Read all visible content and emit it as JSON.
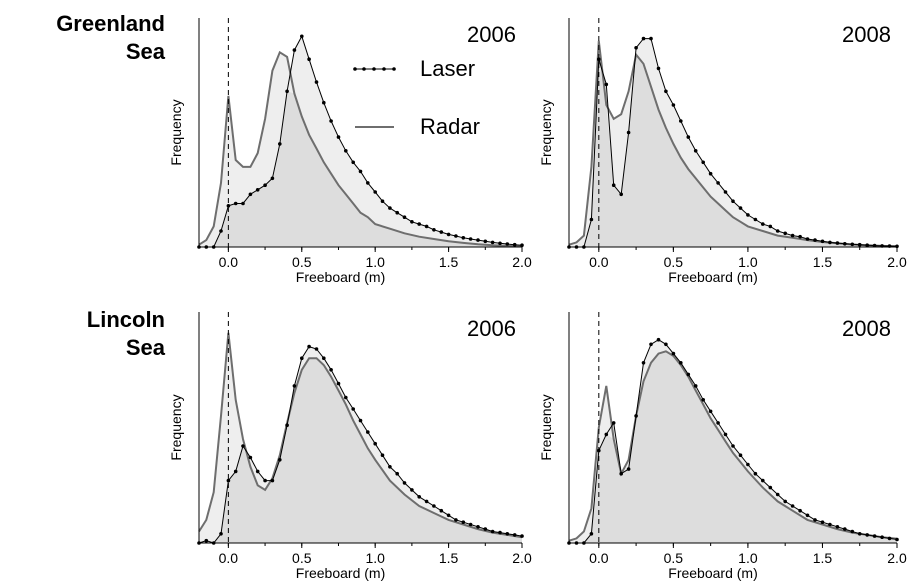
{
  "row_labels": [
    {
      "line1": "Greenland",
      "line2": "Sea"
    },
    {
      "line1": "Lincoln",
      "line2": "Sea"
    }
  ],
  "legend": {
    "laser": "Laser",
    "radar": "Radar"
  },
  "colors": {
    "radar_fill": "#eeeeee",
    "laser_fill": "#dddddd",
    "radar_line": "#6e6e6e",
    "laser_line": "#000000"
  },
  "chart_data": [
    {
      "type": "area",
      "region": "Greenland Sea",
      "year": "2006",
      "xlabel": "Freeboard (m)",
      "ylabel": "Frequency",
      "xticks": [
        "0.0",
        "0.5",
        "1.0",
        "1.5",
        "2.0"
      ],
      "xlim": [
        -0.2,
        2.0
      ],
      "ylim": [
        0,
        1
      ],
      "dashed_line_x": 0.0,
      "legend_placement": "top-right",
      "series": [
        {
          "name": "Radar",
          "x": [
            -0.2,
            -0.15,
            -0.1,
            -0.05,
            0.0,
            0.05,
            0.1,
            0.15,
            0.2,
            0.25,
            0.3,
            0.35,
            0.4,
            0.45,
            0.5,
            0.55,
            0.6,
            0.65,
            0.7,
            0.75,
            0.8,
            0.85,
            0.9,
            0.95,
            1.0,
            1.1,
            1.2,
            1.3,
            1.4,
            1.5,
            1.6,
            1.7,
            1.8,
            1.9,
            2.0
          ],
          "values": [
            0.01,
            0.03,
            0.09,
            0.28,
            0.66,
            0.38,
            0.35,
            0.35,
            0.41,
            0.56,
            0.77,
            0.85,
            0.83,
            0.67,
            0.57,
            0.49,
            0.43,
            0.37,
            0.32,
            0.27,
            0.23,
            0.19,
            0.15,
            0.13,
            0.1,
            0.08,
            0.06,
            0.045,
            0.035,
            0.025,
            0.018,
            0.012,
            0.008,
            0.005,
            0.003
          ]
        },
        {
          "name": "Laser",
          "x": [
            -0.2,
            -0.15,
            -0.1,
            -0.05,
            0.0,
            0.05,
            0.1,
            0.15,
            0.2,
            0.25,
            0.3,
            0.35,
            0.4,
            0.45,
            0.5,
            0.55,
            0.6,
            0.65,
            0.7,
            0.75,
            0.8,
            0.85,
            0.9,
            0.95,
            1.0,
            1.05,
            1.1,
            1.15,
            1.2,
            1.25,
            1.3,
            1.35,
            1.4,
            1.45,
            1.5,
            1.55,
            1.6,
            1.65,
            1.7,
            1.75,
            1.8,
            1.85,
            1.9,
            1.95,
            2.0
          ],
          "values": [
            0.0,
            0.0,
            0.0,
            0.07,
            0.18,
            0.19,
            0.19,
            0.23,
            0.25,
            0.27,
            0.3,
            0.45,
            0.68,
            0.86,
            0.92,
            0.82,
            0.72,
            0.63,
            0.55,
            0.48,
            0.42,
            0.37,
            0.33,
            0.28,
            0.24,
            0.2,
            0.17,
            0.15,
            0.13,
            0.11,
            0.1,
            0.09,
            0.075,
            0.065,
            0.055,
            0.048,
            0.04,
            0.035,
            0.03,
            0.025,
            0.02,
            0.016,
            0.013,
            0.01,
            0.008
          ]
        }
      ]
    },
    {
      "type": "area",
      "region": "Greenland Sea",
      "year": "2008",
      "xlabel": "Freeboard (m)",
      "ylabel": "Frequency",
      "xticks": [
        "0.0",
        "0.5",
        "1.0",
        "1.5",
        "2.0"
      ],
      "xlim": [
        -0.2,
        2.0
      ],
      "ylim": [
        0,
        1
      ],
      "dashed_line_x": 0.0,
      "series": [
        {
          "name": "Radar",
          "x": [
            -0.2,
            -0.15,
            -0.1,
            -0.05,
            0.0,
            0.05,
            0.1,
            0.15,
            0.2,
            0.25,
            0.3,
            0.35,
            0.4,
            0.45,
            0.5,
            0.55,
            0.6,
            0.65,
            0.7,
            0.75,
            0.8,
            0.85,
            0.9,
            0.95,
            1.0,
            1.1,
            1.2,
            1.3,
            1.4,
            1.5,
            1.6,
            1.7,
            1.8,
            1.9,
            2.0
          ],
          "values": [
            0.01,
            0.02,
            0.05,
            0.35,
            0.9,
            0.62,
            0.56,
            0.58,
            0.68,
            0.84,
            0.8,
            0.7,
            0.6,
            0.52,
            0.45,
            0.39,
            0.34,
            0.3,
            0.26,
            0.22,
            0.19,
            0.16,
            0.13,
            0.11,
            0.09,
            0.07,
            0.05,
            0.04,
            0.03,
            0.022,
            0.016,
            0.011,
            0.008,
            0.005,
            0.003
          ]
        },
        {
          "name": "Laser",
          "x": [
            -0.2,
            -0.15,
            -0.1,
            -0.05,
            0.0,
            0.05,
            0.1,
            0.15,
            0.2,
            0.25,
            0.3,
            0.35,
            0.4,
            0.45,
            0.5,
            0.55,
            0.6,
            0.65,
            0.7,
            0.75,
            0.8,
            0.85,
            0.9,
            0.95,
            1.0,
            1.05,
            1.1,
            1.15,
            1.2,
            1.25,
            1.3,
            1.35,
            1.4,
            1.45,
            1.5,
            1.55,
            1.6,
            1.65,
            1.7,
            1.75,
            1.8,
            1.85,
            1.9,
            1.95,
            2.0
          ],
          "values": [
            0.0,
            0.0,
            0.0,
            0.12,
            0.82,
            0.71,
            0.27,
            0.23,
            0.5,
            0.87,
            0.91,
            0.91,
            0.78,
            0.68,
            0.62,
            0.55,
            0.48,
            0.42,
            0.37,
            0.32,
            0.28,
            0.24,
            0.2,
            0.17,
            0.14,
            0.12,
            0.1,
            0.09,
            0.07,
            0.06,
            0.05,
            0.045,
            0.035,
            0.03,
            0.025,
            0.02,
            0.017,
            0.014,
            0.012,
            0.01,
            0.008,
            0.006,
            0.005,
            0.004,
            0.003
          ]
        }
      ]
    },
    {
      "type": "area",
      "region": "Lincoln Sea",
      "year": "2006",
      "xlabel": "Freeboard (m)",
      "ylabel": "Frequency",
      "xticks": [
        "0.0",
        "0.5",
        "1.0",
        "1.5",
        "2.0"
      ],
      "xlim": [
        -0.2,
        2.0
      ],
      "ylim": [
        0,
        1
      ],
      "dashed_line_x": 0.0,
      "series": [
        {
          "name": "Radar",
          "x": [
            -0.2,
            -0.15,
            -0.1,
            -0.05,
            0.0,
            0.05,
            0.1,
            0.15,
            0.2,
            0.25,
            0.3,
            0.35,
            0.4,
            0.45,
            0.5,
            0.55,
            0.6,
            0.65,
            0.7,
            0.75,
            0.8,
            0.85,
            0.9,
            0.95,
            1.0,
            1.1,
            1.2,
            1.3,
            1.4,
            1.5,
            1.6,
            1.7,
            1.8,
            1.9,
            2.0
          ],
          "values": [
            0.05,
            0.1,
            0.22,
            0.55,
            0.91,
            0.62,
            0.45,
            0.33,
            0.25,
            0.23,
            0.28,
            0.38,
            0.52,
            0.65,
            0.75,
            0.8,
            0.8,
            0.77,
            0.72,
            0.66,
            0.6,
            0.53,
            0.47,
            0.41,
            0.36,
            0.27,
            0.21,
            0.16,
            0.13,
            0.1,
            0.08,
            0.06,
            0.045,
            0.035,
            0.025
          ]
        },
        {
          "name": "Laser",
          "x": [
            -0.2,
            -0.15,
            -0.1,
            -0.05,
            0.0,
            0.05,
            0.1,
            0.15,
            0.2,
            0.25,
            0.3,
            0.35,
            0.4,
            0.45,
            0.5,
            0.55,
            0.6,
            0.65,
            0.7,
            0.75,
            0.8,
            0.85,
            0.9,
            0.95,
            1.0,
            1.05,
            1.1,
            1.15,
            1.2,
            1.25,
            1.3,
            1.35,
            1.4,
            1.45,
            1.5,
            1.55,
            1.6,
            1.65,
            1.7,
            1.75,
            1.8,
            1.85,
            1.9,
            1.95,
            2.0
          ],
          "values": [
            0.0,
            0.01,
            0.0,
            0.04,
            0.27,
            0.31,
            0.42,
            0.37,
            0.31,
            0.27,
            0.27,
            0.36,
            0.51,
            0.68,
            0.8,
            0.85,
            0.84,
            0.8,
            0.75,
            0.69,
            0.63,
            0.58,
            0.53,
            0.48,
            0.43,
            0.38,
            0.33,
            0.3,
            0.26,
            0.23,
            0.2,
            0.18,
            0.16,
            0.14,
            0.12,
            0.1,
            0.09,
            0.08,
            0.07,
            0.06,
            0.05,
            0.045,
            0.04,
            0.035,
            0.03
          ]
        }
      ]
    },
    {
      "type": "area",
      "region": "Lincoln Sea",
      "year": "2008",
      "xlabel": "Freeboard (m)",
      "ylabel": "Frequency",
      "xticks": [
        "0.0",
        "0.5",
        "1.0",
        "1.5",
        "2.0"
      ],
      "xlim": [
        -0.2,
        2.0
      ],
      "ylim": [
        0,
        1
      ],
      "dashed_line_x": 0.0,
      "series": [
        {
          "name": "Radar",
          "x": [
            -0.2,
            -0.15,
            -0.1,
            -0.05,
            0.0,
            0.05,
            0.1,
            0.15,
            0.2,
            0.25,
            0.3,
            0.35,
            0.4,
            0.45,
            0.5,
            0.55,
            0.6,
            0.65,
            0.7,
            0.75,
            0.8,
            0.85,
            0.9,
            0.95,
            1.0,
            1.1,
            1.2,
            1.3,
            1.4,
            1.5,
            1.6,
            1.7,
            1.8,
            1.9,
            2.0
          ],
          "values": [
            0.01,
            0.02,
            0.05,
            0.15,
            0.5,
            0.68,
            0.45,
            0.3,
            0.36,
            0.55,
            0.7,
            0.78,
            0.82,
            0.83,
            0.81,
            0.77,
            0.72,
            0.66,
            0.6,
            0.54,
            0.49,
            0.44,
            0.39,
            0.35,
            0.31,
            0.24,
            0.18,
            0.14,
            0.1,
            0.08,
            0.06,
            0.045,
            0.035,
            0.025,
            0.018
          ]
        },
        {
          "name": "Laser",
          "x": [
            -0.2,
            -0.15,
            -0.1,
            -0.05,
            0.0,
            0.05,
            0.1,
            0.15,
            0.2,
            0.25,
            0.3,
            0.35,
            0.4,
            0.45,
            0.5,
            0.55,
            0.6,
            0.65,
            0.7,
            0.75,
            0.8,
            0.85,
            0.9,
            0.95,
            1.0,
            1.05,
            1.1,
            1.15,
            1.2,
            1.25,
            1.3,
            1.35,
            1.4,
            1.45,
            1.5,
            1.55,
            1.6,
            1.65,
            1.7,
            1.75,
            1.8,
            1.85,
            1.9,
            1.95,
            2.0
          ],
          "values": [
            0.0,
            0.0,
            0.0,
            0.04,
            0.4,
            0.47,
            0.52,
            0.3,
            0.32,
            0.55,
            0.78,
            0.86,
            0.88,
            0.86,
            0.82,
            0.78,
            0.73,
            0.68,
            0.62,
            0.57,
            0.52,
            0.47,
            0.42,
            0.38,
            0.34,
            0.3,
            0.27,
            0.24,
            0.21,
            0.18,
            0.16,
            0.14,
            0.12,
            0.1,
            0.09,
            0.08,
            0.07,
            0.06,
            0.05,
            0.04,
            0.035,
            0.03,
            0.025,
            0.02,
            0.015
          ]
        }
      ]
    }
  ]
}
